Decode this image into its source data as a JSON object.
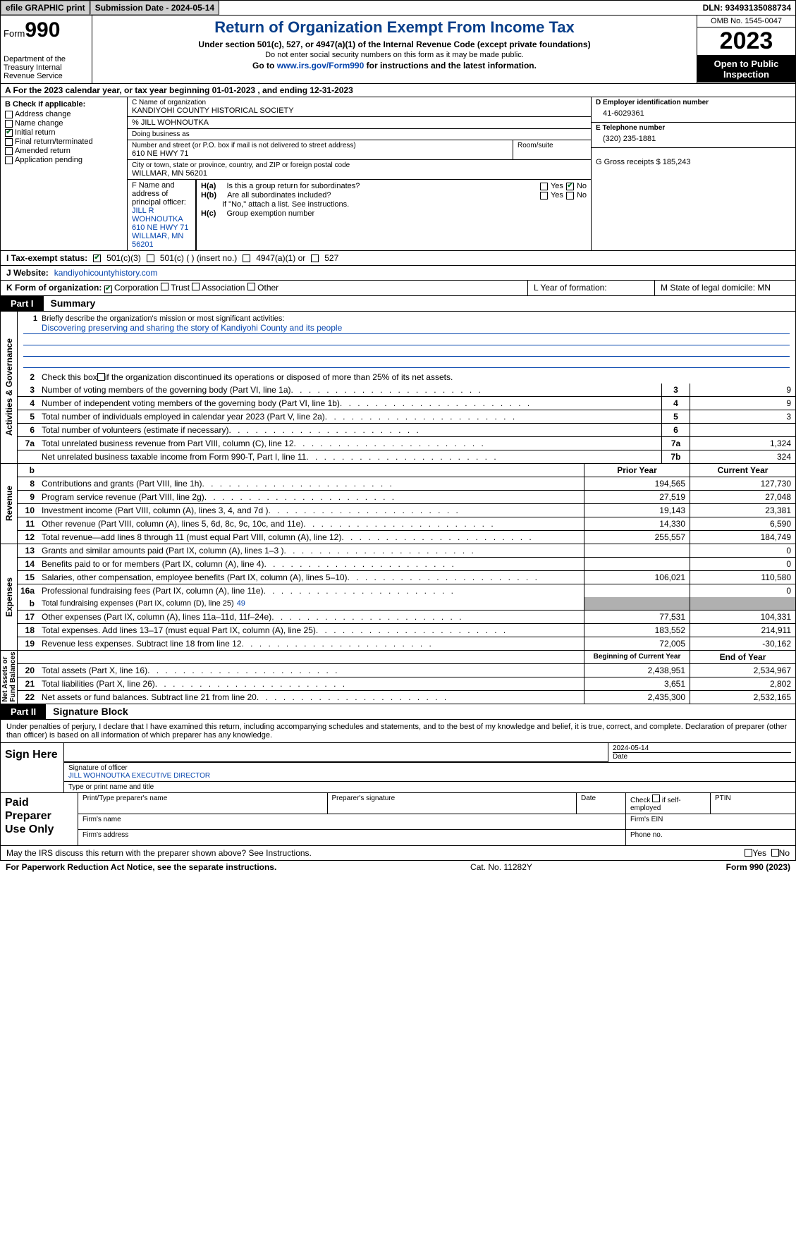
{
  "topbar": {
    "efile": "efile GRAPHIC print",
    "sub_label": "Submission Date - 2024-05-14",
    "dln_label": "DLN: 93493135088734"
  },
  "header": {
    "form": "Form",
    "num": "990",
    "title": "Return of Organization Exempt From Income Tax",
    "sub1": "Under section 501(c), 527, or 4947(a)(1) of the Internal Revenue Code (except private foundations)",
    "sub2": "Do not enter social security numbers on this form as it may be made public.",
    "goto_pre": "Go to ",
    "goto_link": "www.irs.gov/Form990",
    "goto_post": " for instructions and the latest information.",
    "dept": "Department of the Treasury Internal Revenue Service",
    "omb": "OMB No. 1545-0047",
    "year": "2023",
    "open": "Open to Public Inspection"
  },
  "lineA": "A For the 2023 calendar year, or tax year beginning 01-01-2023   , and ending 12-31-2023",
  "boxB": {
    "label": "B Check if applicable:",
    "items": [
      {
        "t": "Address change",
        "c": false
      },
      {
        "t": "Name change",
        "c": false
      },
      {
        "t": "Initial return",
        "c": true
      },
      {
        "t": "Final return/terminated",
        "c": false
      },
      {
        "t": "Amended return",
        "c": false
      },
      {
        "t": "Application pending",
        "c": false
      }
    ]
  },
  "boxC": {
    "name_label": "C Name of organization",
    "name": "KANDIYOHI COUNTY HISTORICAL SOCIETY",
    "care_of": "% JILL WOHNOUTKA",
    "dba_label": "Doing business as",
    "addr_label": "Number and street (or P.O. box if mail is not delivered to street address)",
    "addr": "610 NE HWY 71",
    "room_label": "Room/suite",
    "city_label": "City or town, state or province, country, and ZIP or foreign postal code",
    "city": "WILLMAR, MN  56201",
    "officer_label": "F  Name and address of principal officer:",
    "officer_name": "JILL R WOHNOUTKA",
    "officer_addr1": "610 NE HWY 71",
    "officer_addr2": "WILLMAR, MN  56201"
  },
  "boxD": {
    "label": "D Employer identification number",
    "value": "41-6029361"
  },
  "boxE": {
    "label": "E Telephone number",
    "value": "(320) 235-1881"
  },
  "boxG": {
    "label": "G Gross receipts $ 185,243"
  },
  "boxH": {
    "a": "Is this a group return for subordinates?",
    "b": "Are all subordinates included?",
    "b_note": "If \"No,\" attach a list. See instructions.",
    "c": "Group exemption number"
  },
  "rowI": {
    "label": "I   Tax-exempt status:",
    "opts": [
      "501(c)(3)",
      "501(c) (  ) (insert no.)",
      "4947(a)(1) or",
      "527"
    ]
  },
  "rowJ": {
    "label": "J   Website:",
    "value": "kandiyohicountyhistory.com"
  },
  "rowK": {
    "label": "K Form of organization:",
    "opts": [
      "Corporation",
      "Trust",
      "Association",
      "Other"
    ]
  },
  "rowL": {
    "label": "L Year of formation:"
  },
  "rowM": {
    "label": "M State of legal domicile: MN"
  },
  "part1_label": "Part I",
  "part1_title": "Summary",
  "mission_label": "Briefly describe the organization's mission or most significant activities:",
  "mission": "Discovering preserving and sharing the story of Kandiyohi County and its people",
  "line2": "Check this box      if the organization discontinued its operations or disposed of more than 25% of its net assets.",
  "gov_rows": [
    {
      "n": "3",
      "d": "Number of voting members of the governing body (Part VI, line 1a)",
      "box": "3",
      "v": "9"
    },
    {
      "n": "4",
      "d": "Number of independent voting members of the governing body (Part VI, line 1b)",
      "box": "4",
      "v": "9"
    },
    {
      "n": "5",
      "d": "Total number of individuals employed in calendar year 2023 (Part V, line 2a)",
      "box": "5",
      "v": "3"
    },
    {
      "n": "6",
      "d": "Total number of volunteers (estimate if necessary)",
      "box": "6",
      "v": ""
    },
    {
      "n": "7a",
      "d": "Total unrelated business revenue from Part VIII, column (C), line 12",
      "box": "7a",
      "v": "1,324"
    },
    {
      "n": "",
      "d": "Net unrelated business taxable income from Form 990-T, Part I, line 11",
      "box": "7b",
      "v": "324"
    }
  ],
  "col_hdrs": {
    "prior": "Prior Year",
    "current": "Current Year",
    "begin": "Beginning of Current Year",
    "end": "End of Year"
  },
  "rev_rows": [
    {
      "n": "8",
      "d": "Contributions and grants (Part VIII, line 1h)",
      "p": "194,565",
      "c": "127,730"
    },
    {
      "n": "9",
      "d": "Program service revenue (Part VIII, line 2g)",
      "p": "27,519",
      "c": "27,048"
    },
    {
      "n": "10",
      "d": "Investment income (Part VIII, column (A), lines 3, 4, and 7d )",
      "p": "19,143",
      "c": "23,381"
    },
    {
      "n": "11",
      "d": "Other revenue (Part VIII, column (A), lines 5, 6d, 8c, 9c, 10c, and 11e)",
      "p": "14,330",
      "c": "6,590"
    },
    {
      "n": "12",
      "d": "Total revenue—add lines 8 through 11 (must equal Part VIII, column (A), line 12)",
      "p": "255,557",
      "c": "184,749"
    }
  ],
  "exp_rows": [
    {
      "n": "13",
      "d": "Grants and similar amounts paid (Part IX, column (A), lines 1–3 )",
      "p": "",
      "c": "0"
    },
    {
      "n": "14",
      "d": "Benefits paid to or for members (Part IX, column (A), line 4)",
      "p": "",
      "c": "0"
    },
    {
      "n": "15",
      "d": "Salaries, other compensation, employee benefits (Part IX, column (A), lines 5–10)",
      "p": "106,021",
      "c": "110,580"
    },
    {
      "n": "16a",
      "d": "Professional fundraising fees (Part IX, column (A), line 11e)",
      "p": "",
      "c": "0"
    }
  ],
  "exp_b": {
    "n": "b",
    "d": "Total fundraising expenses (Part IX, column (D), line 25) ",
    "inline": "49"
  },
  "exp_rows2": [
    {
      "n": "17",
      "d": "Other expenses (Part IX, column (A), lines 11a–11d, 11f–24e)",
      "p": "77,531",
      "c": "104,331"
    },
    {
      "n": "18",
      "d": "Total expenses. Add lines 13–17 (must equal Part IX, column (A), line 25)",
      "p": "183,552",
      "c": "214,911"
    },
    {
      "n": "19",
      "d": "Revenue less expenses. Subtract line 18 from line 12",
      "p": "72,005",
      "c": "-30,162"
    }
  ],
  "net_rows": [
    {
      "n": "20",
      "d": "Total assets (Part X, line 16)",
      "p": "2,438,951",
      "c": "2,534,967"
    },
    {
      "n": "21",
      "d": "Total liabilities (Part X, line 26)",
      "p": "3,651",
      "c": "2,802"
    },
    {
      "n": "22",
      "d": "Net assets or fund balances. Subtract line 21 from line 20",
      "p": "2,435,300",
      "c": "2,532,165"
    }
  ],
  "part2_label": "Part II",
  "part2_title": "Signature Block",
  "perjury": "Under penalties of perjury, I declare that I have examined this return, including accompanying schedules and statements, and to the best of my knowledge and belief, it is true, correct, and complete. Declaration of preparer (other than officer) is based on all information of which preparer has any knowledge.",
  "sign": {
    "here": "Sign Here",
    "date": "2024-05-14",
    "sig_of": "Signature of officer",
    "officer": "JILL WOHNOUTKA  EXECUTIVE DIRECTOR",
    "type_name": "Type or print name and title",
    "date_lbl": "Date"
  },
  "prep": {
    "label": "Paid Preparer Use Only",
    "h1": "Print/Type preparer's name",
    "h2": "Preparer's signature",
    "h3": "Date",
    "h4": "Check      if self-employed",
    "h5": "PTIN",
    "firm_name": "Firm's name",
    "firm_ein": "Firm's EIN",
    "firm_addr": "Firm's address",
    "phone": "Phone no."
  },
  "discuss": "May the IRS discuss this return with the preparer shown above? See Instructions.",
  "footer": {
    "l": "For Paperwork Reduction Act Notice, see the separate instructions.",
    "m": "Cat. No. 11282Y",
    "r": "Form 990 (2023)"
  }
}
